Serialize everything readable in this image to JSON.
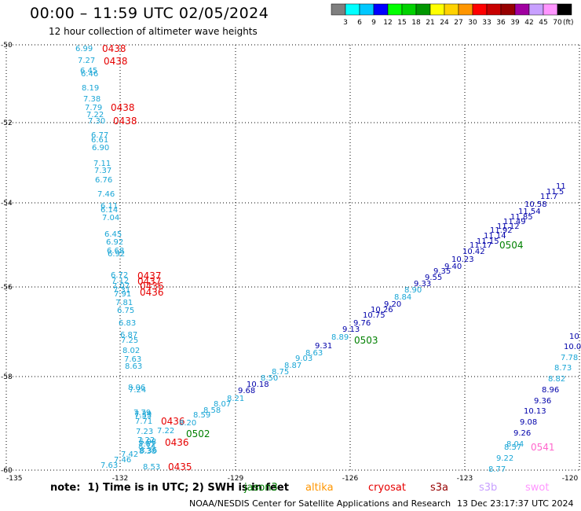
{
  "header": {
    "title": "00:00 – 11:59 UTC 02/05/2024",
    "subtitle": "12 hour collection of altimeter wave heights"
  },
  "colorbar": {
    "colors": [
      "#7f7f7f",
      "#00ffff",
      "#00c8ff",
      "#0000ff",
      "#00ff00",
      "#00d200",
      "#009600",
      "#ffff00",
      "#ffd200",
      "#ff9600",
      "#ff0000",
      "#c80000",
      "#960000",
      "#a000a0",
      "#c8a0ff",
      "#ff96ff",
      "#000000"
    ],
    "labels": [
      "3",
      "6",
      "9",
      "12",
      "15",
      "18",
      "21",
      "24",
      "27",
      "30",
      "33",
      "36",
      "39",
      "42",
      "45",
      "70"
    ],
    "unit": "(ft)"
  },
  "axes": {
    "lat_labels": [
      "-50",
      "-52",
      "-54",
      "-56",
      "-58",
      "-60"
    ],
    "lon_labels": [
      "-135",
      "-132",
      "-129",
      "-126",
      "-123",
      "-120"
    ]
  },
  "map": {
    "left_track": {
      "color": "#1aa6d6",
      "values": [
        "6.99",
        "7.27",
        "6.45",
        "6.46",
        "8.19",
        "7.38",
        "7.79",
        "7.22",
        "7.30",
        "6.77",
        "6.61",
        "6.90",
        "7.11",
        "7.37",
        "6.76",
        "7.46",
        "6.11",
        "6.14",
        "7.04",
        "6.45",
        "6.92",
        "6.68",
        "6.92",
        "6.72",
        "7.12",
        "7.07",
        "7.31",
        "7.91",
        "7.81",
        "6.75",
        "6.83",
        "6.87",
        "7.25",
        "8.02",
        "7.63",
        "8.63",
        "8.06",
        "7.24",
        "7.79",
        "7.55",
        "7.71",
        "7.23",
        "7.22",
        "7.67",
        "8.14",
        "6.98",
        "8.38",
        "7.42",
        "7.46",
        "7.63",
        "8.53"
      ]
    },
    "left_times": [
      {
        "t": "0438",
        "color": "#e60000"
      },
      {
        "t": "0438",
        "color": "#e60000"
      },
      {
        "t": "0438",
        "color": "#e60000"
      },
      {
        "t": "0438",
        "color": "#e60000"
      },
      {
        "t": "0437",
        "color": "#e60000"
      },
      {
        "t": "0437",
        "color": "#e60000"
      },
      {
        "t": "0436",
        "color": "#e60000"
      },
      {
        "t": "0436",
        "color": "#e60000"
      },
      {
        "t": "0436",
        "color": "#e60000"
      },
      {
        "t": "0436",
        "color": "#e60000"
      },
      {
        "t": "0435",
        "color": "#e60000"
      }
    ],
    "diag_track": {
      "light_values": [
        "8.20",
        "8.59",
        "8.58",
        "8.07",
        "8.21",
        "8.36",
        "7.22",
        "7.39"
      ],
      "dark_values": [
        "9.68",
        "10.18",
        "8.50",
        "8.75",
        "8.87",
        "9.03",
        "9.31",
        "8.63",
        "8.89",
        "9.13",
        "9.76",
        "10.75",
        "10.26",
        "9.20",
        "8.84",
        "8.90",
        "9.33",
        "9.55",
        "9.35",
        "9.40",
        "10.23",
        "10.42",
        "11.17",
        "11.15",
        "11.14",
        "11.92",
        "11.12",
        "11.49",
        "11.85",
        "11.54",
        "10.58",
        "11.7",
        "11.5",
        "11"
      ],
      "times": [
        {
          "t": "0502",
          "color": "#008000"
        },
        {
          "t": "0503",
          "color": "#008000"
        },
        {
          "t": "0504",
          "color": "#008000"
        }
      ]
    },
    "right_track": {
      "values": [
        "10",
        "10.0",
        "7.78",
        "8.73",
        "8.82",
        "8.96",
        "9.36",
        "10.13",
        "9.08",
        "9.26",
        "8.04",
        "8.57",
        "9.22",
        "8.77"
      ],
      "time": {
        "t": "0541",
        "color": "#ff66cc"
      }
    }
  },
  "note": "note:  1) Time is in UTC; 2) SWH is in feet",
  "missions": [
    {
      "name": "jason3",
      "color": "#008000"
    },
    {
      "name": "altika",
      "color": "#ff9600"
    },
    {
      "name": "cryosat",
      "color": "#e60000"
    },
    {
      "name": "s3a",
      "color": "#960000"
    },
    {
      "name": "s3b",
      "color": "#c8a0ff"
    },
    {
      "name": "swot",
      "color": "#ff96ff"
    }
  ],
  "footer": {
    "left": "NOAA/NESDIS Center for Satellite Applications and Research",
    "right": "13 Dec 23:17:37 UTC 2024"
  }
}
